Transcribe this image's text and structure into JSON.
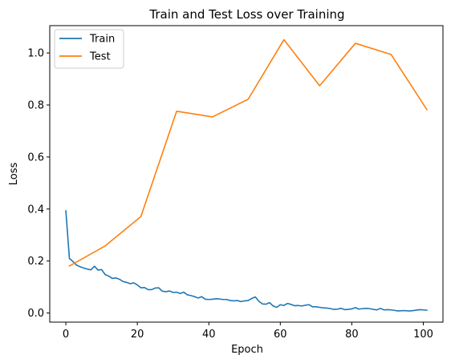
{
  "chart_data": {
    "type": "line",
    "title": "Train and Test Loss over Training",
    "xlabel": "Epoch",
    "ylabel": "Loss",
    "xlim": [
      -4.5,
      105.5
    ],
    "ylim": [
      -0.035,
      1.105
    ],
    "xticks": [
      0,
      20,
      40,
      60,
      80,
      100
    ],
    "yticks": [
      0.0,
      0.2,
      0.4,
      0.6,
      0.8,
      1.0
    ],
    "xtick_labels": [
      "0",
      "20",
      "40",
      "60",
      "80",
      "100"
    ],
    "ytick_labels": [
      "0.0",
      "0.2",
      "0.4",
      "0.6",
      "0.8",
      "1.0"
    ],
    "grid": false,
    "legend_position": "top-left",
    "series": [
      {
        "name": "Train",
        "color": "#1f77b4",
        "x": [
          0,
          1,
          2,
          3,
          4,
          5,
          6,
          7,
          8,
          9,
          10,
          11,
          12,
          13,
          14,
          15,
          16,
          17,
          18,
          19,
          20,
          21,
          22,
          23,
          24,
          25,
          26,
          27,
          28,
          29,
          30,
          31,
          32,
          33,
          34,
          35,
          36,
          37,
          38,
          39,
          40,
          41,
          42,
          43,
          44,
          45,
          46,
          47,
          48,
          49,
          50,
          51,
          52,
          53,
          54,
          55,
          56,
          57,
          58,
          59,
          60,
          61,
          62,
          63,
          64,
          65,
          66,
          67,
          68,
          69,
          70,
          71,
          72,
          73,
          74,
          75,
          76,
          77,
          78,
          79,
          80,
          81,
          82,
          83,
          84,
          85,
          86,
          87,
          88,
          89,
          90,
          91,
          92,
          93,
          94,
          95,
          96,
          97,
          98,
          99,
          100,
          101
        ],
        "y": [
          0.393,
          0.21,
          0.198,
          0.184,
          0.178,
          0.173,
          0.169,
          0.166,
          0.18,
          0.165,
          0.167,
          0.148,
          0.142,
          0.133,
          0.135,
          0.13,
          0.121,
          0.118,
          0.113,
          0.116,
          0.108,
          0.097,
          0.098,
          0.09,
          0.09,
          0.096,
          0.097,
          0.084,
          0.082,
          0.085,
          0.079,
          0.08,
          0.075,
          0.08,
          0.07,
          0.067,
          0.063,
          0.058,
          0.063,
          0.053,
          0.052,
          0.053,
          0.055,
          0.054,
          0.052,
          0.052,
          0.048,
          0.047,
          0.048,
          0.044,
          0.047,
          0.048,
          0.056,
          0.062,
          0.045,
          0.035,
          0.034,
          0.04,
          0.027,
          0.022,
          0.032,
          0.029,
          0.037,
          0.033,
          0.028,
          0.029,
          0.027,
          0.03,
          0.032,
          0.024,
          0.024,
          0.022,
          0.02,
          0.019,
          0.017,
          0.014,
          0.015,
          0.018,
          0.013,
          0.014,
          0.016,
          0.021,
          0.015,
          0.017,
          0.018,
          0.017,
          0.014,
          0.012,
          0.018,
          0.012,
          0.013,
          0.012,
          0.01,
          0.008,
          0.009,
          0.009,
          0.008,
          0.009,
          0.011,
          0.013,
          0.012,
          0.011
        ]
      },
      {
        "name": "Test",
        "color": "#ff7f0e",
        "x": [
          1,
          11,
          21,
          31,
          41,
          51,
          61,
          71,
          81,
          91,
          101
        ],
        "y": [
          0.181,
          0.258,
          0.371,
          0.776,
          0.754,
          0.822,
          1.051,
          0.874,
          1.037,
          0.994,
          0.782
        ]
      }
    ]
  }
}
